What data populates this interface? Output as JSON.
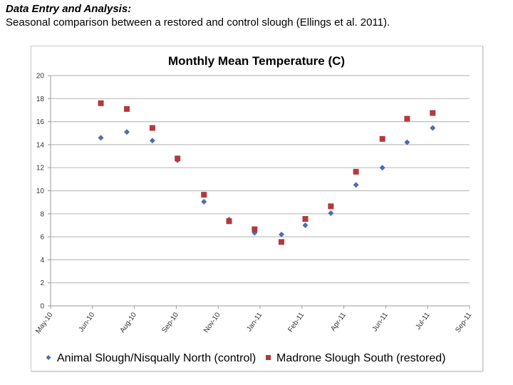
{
  "page": {
    "heading": "Data Entry and Analysis:",
    "subheading": "Seasonal comparison between a restored and control slough (Ellings et al. 2011)."
  },
  "chart_data": {
    "type": "scatter",
    "title": "Monthly Mean Temperature (C)",
    "xlabel": "",
    "ylabel": "",
    "ylim": [
      0,
      20
    ],
    "yticks": [
      "0",
      "2",
      "4",
      "6",
      "8",
      "10",
      "12",
      "14",
      "16",
      "18",
      "20"
    ],
    "xticks": [
      "May-10",
      "Jun-10",
      "Aug-10",
      "Sep-10",
      "Nov-10",
      "Jan-11",
      "Feb-11",
      "Apr-11",
      "Jun-11",
      "Jul-11",
      "Sep-11"
    ],
    "x_index_range": [
      0,
      10
    ],
    "grid": "horizontal",
    "legend_position": "bottom",
    "x": [
      1.2,
      1.82,
      2.43,
      3.03,
      3.66,
      4.26,
      4.87,
      5.51,
      6.08,
      6.69,
      7.29,
      7.92,
      8.51,
      9.12
    ],
    "series": [
      {
        "name": "Animal Slough/Nisqually North (control)",
        "marker": "diamond",
        "color": "#4a6fb0",
        "values": [
          14.6,
          15.1,
          14.35,
          12.65,
          9.05,
          7.5,
          6.35,
          6.2,
          7.0,
          8.05,
          10.5,
          12.0,
          14.2,
          15.45
        ]
      },
      {
        "name": "Madrone Slough South (restored)",
        "marker": "square",
        "color": "#b5383a",
        "values": [
          17.6,
          17.1,
          15.45,
          12.8,
          9.65,
          7.35,
          6.65,
          5.55,
          7.55,
          8.65,
          11.65,
          14.5,
          16.25,
          16.75
        ]
      }
    ]
  }
}
